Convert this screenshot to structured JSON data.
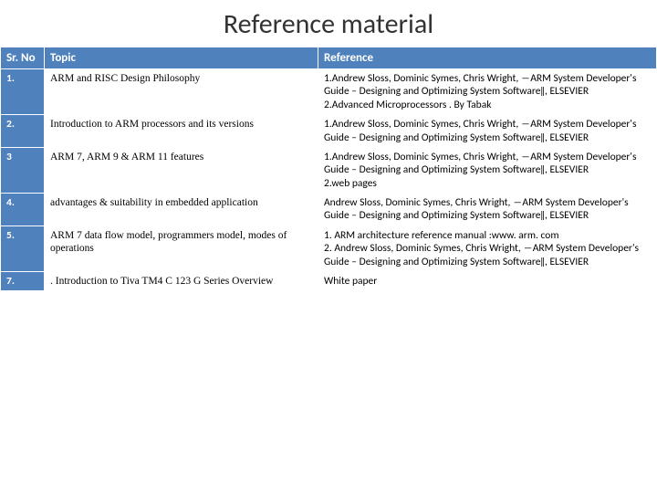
{
  "title": "Reference material",
  "columns": [
    "Sr. No",
    "Topic",
    "Reference"
  ],
  "rows": [
    {
      "sr": "1.",
      "topic": "ARM and RISC Design Philosophy",
      "ref": "1.Andrew Sloss, Dominic Symes, Chris Wright, ―ARM System Developer's Guide – Designing and Optimizing System Software‖, ELSEVIER\n2.Advanced Microprocessors . By Tabak"
    },
    {
      "sr": "2.",
      "topic": "Introduction to ARM processors and its versions",
      "ref": "1.Andrew Sloss, Dominic Symes, Chris Wright, ―ARM System Developer's Guide – Designing and Optimizing System Software‖, ELSEVIER"
    },
    {
      "sr": "3",
      "topic": "ARM 7, ARM 9 & ARM 11 features",
      "ref": "1.Andrew Sloss, Dominic Symes, Chris Wright, ―ARM System Developer's Guide – Designing and Optimizing System Software‖, ELSEVIER\n2.web pages"
    },
    {
      "sr": "4.",
      "topic": "advantages & suitability in embedded application",
      "ref": "Andrew Sloss, Dominic Symes, Chris Wright, ―ARM System Developer's Guide – Designing and Optimizing System Software‖, ELSEVIER"
    },
    {
      "sr": "5.",
      "topic": "ARM 7 data flow model, programmers model, modes of operations",
      "ref": "1. ARM architecture reference manual :www. arm. com\n2. Andrew Sloss, Dominic Symes, Chris Wright, ―ARM System Developer's Guide – Designing and Optimizing System Software‖, ELSEVIER"
    },
    {
      "sr": "7.",
      "topic": ". Introduction to Tiva TM4 C 123 G Series Overview",
      "ref": "White paper"
    }
  ],
  "colors": {
    "header_bg": "#4f81bd",
    "header_fg": "#ffffff",
    "cell_bg": "#ffffff",
    "cell_fg": "#000000"
  }
}
